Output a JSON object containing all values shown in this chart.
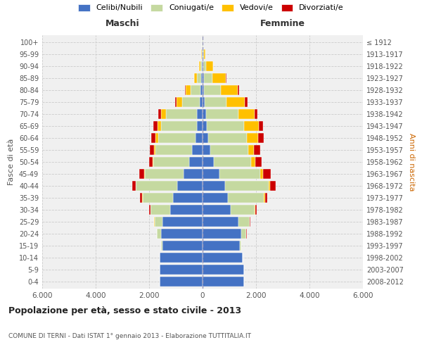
{
  "age_groups": [
    "0-4",
    "5-9",
    "10-14",
    "15-19",
    "20-24",
    "25-29",
    "30-34",
    "35-39",
    "40-44",
    "45-49",
    "50-54",
    "55-59",
    "60-64",
    "65-69",
    "70-74",
    "75-79",
    "80-84",
    "85-89",
    "90-94",
    "95-99",
    "100+"
  ],
  "birth_years": [
    "2008-2012",
    "2003-2007",
    "1998-2002",
    "1993-1997",
    "1988-1992",
    "1983-1987",
    "1978-1982",
    "1973-1977",
    "1968-1972",
    "1963-1967",
    "1958-1962",
    "1953-1957",
    "1948-1952",
    "1943-1947",
    "1938-1942",
    "1933-1937",
    "1928-1932",
    "1923-1927",
    "1918-1922",
    "1913-1917",
    "≤ 1912"
  ],
  "maschi": {
    "celibi": [
      1600,
      1600,
      1600,
      1500,
      1550,
      1500,
      1200,
      1100,
      950,
      720,
      500,
      390,
      260,
      220,
      210,
      110,
      80,
      55,
      30,
      15,
      10
    ],
    "coniugati": [
      5,
      5,
      10,
      50,
      150,
      300,
      750,
      1150,
      1550,
      1450,
      1350,
      1380,
      1400,
      1320,
      1150,
      650,
      380,
      160,
      55,
      20,
      10
    ],
    "vedovi": [
      0,
      0,
      0,
      0,
      5,
      5,
      5,
      5,
      10,
      20,
      30,
      50,
      100,
      150,
      200,
      210,
      170,
      100,
      35,
      10,
      5
    ],
    "divorziati": [
      0,
      0,
      0,
      5,
      10,
      20,
      55,
      85,
      130,
      170,
      130,
      160,
      170,
      160,
      110,
      60,
      25,
      10,
      5,
      0,
      0
    ]
  },
  "femmine": {
    "nubili": [
      1540,
      1540,
      1500,
      1400,
      1450,
      1350,
      1050,
      950,
      830,
      620,
      420,
      300,
      200,
      165,
      140,
      90,
      65,
      45,
      20,
      10,
      5
    ],
    "coniugate": [
      5,
      5,
      10,
      50,
      180,
      400,
      900,
      1350,
      1650,
      1550,
      1400,
      1420,
      1450,
      1380,
      1200,
      800,
      620,
      320,
      110,
      30,
      10
    ],
    "vedove": [
      0,
      0,
      0,
      5,
      5,
      10,
      20,
      30,
      50,
      100,
      160,
      210,
      420,
      560,
      600,
      700,
      640,
      510,
      270,
      60,
      10
    ],
    "divorziate": [
      0,
      0,
      0,
      5,
      10,
      20,
      55,
      100,
      210,
      270,
      220,
      220,
      210,
      170,
      120,
      90,
      35,
      15,
      5,
      0,
      0
    ]
  },
  "color_celibe": "#4472c4",
  "color_coniugato": "#c5d9a0",
  "color_vedovo": "#ffc000",
  "color_divorziato": "#cc0000",
  "title": "Popolazione per età, sesso e stato civile - 2013",
  "subtitle": "COMUNE DI TERNI - Dati ISTAT 1° gennaio 2013 - Elaborazione TUTTITALIA.IT",
  "ylabel": "Fasce di età",
  "ylabel_right": "Anni di nascita",
  "xlabel_left": "Maschi",
  "xlabel_right": "Femmine",
  "xlim": 6000,
  "bg_color": "#f0f0f0",
  "grid_color": "#cccccc",
  "anni_color": "#cc6600"
}
